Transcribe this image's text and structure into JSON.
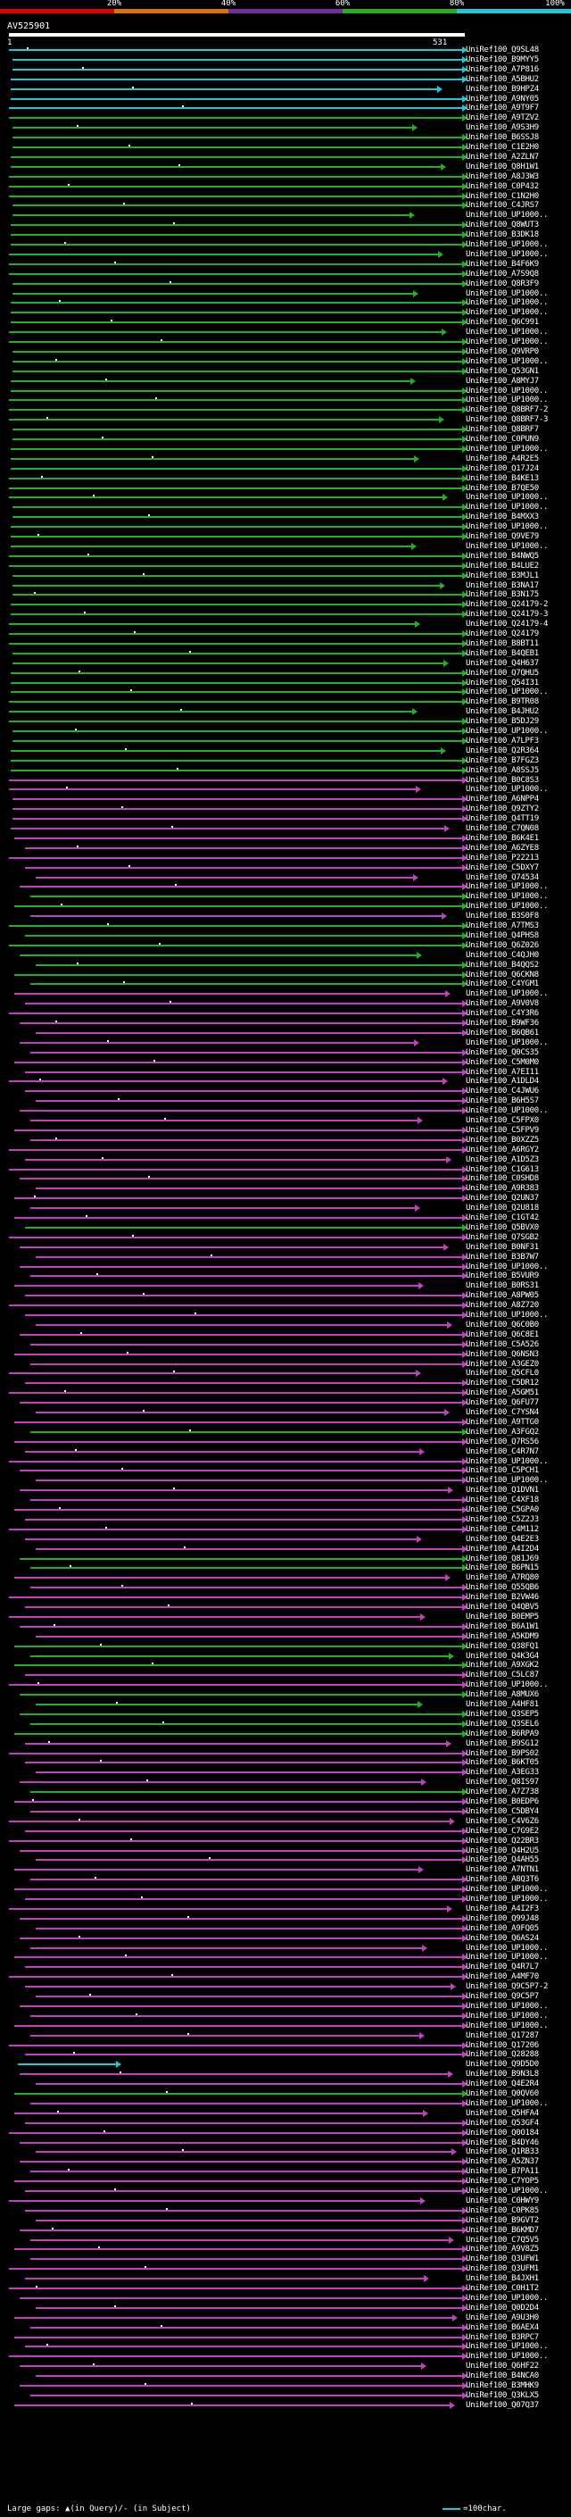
{
  "scale": {
    "labels": [
      "20%",
      "40%",
      "60%",
      "80%",
      "100%"
    ],
    "colors": [
      "#e00000",
      "#e07000",
      "#7a2aa0",
      "#22b022",
      "#1cc8d8"
    ]
  },
  "query": {
    "id": "AV525901",
    "start": "1",
    "end": "531"
  },
  "legend": {
    "gaps_text": "Large gaps: ▲(in Query)/- (in Subject)",
    "scale_text": "=100char."
  },
  "hits": [
    {
      "label": "UniRef100_Q9SL48",
      "color": "cyan"
    },
    {
      "label": "UniRef100_B9MYY5",
      "color": "cyan"
    },
    {
      "label": "UniRef100_A7P816",
      "color": "cyan"
    },
    {
      "label": "UniRef100_A5BHU2",
      "color": "cyan"
    },
    {
      "label": "UniRef100_B9HPZ4",
      "color": "cyan"
    },
    {
      "label": "UniRef100_A9NY05",
      "color": "cyan"
    },
    {
      "label": "UniRef100_A9T9F7",
      "color": "cyan"
    },
    {
      "label": "UniRef100_A9TZV2",
      "color": "green"
    },
    {
      "label": "UniRef100_A9S3H9",
      "color": "green"
    },
    {
      "label": "UniRef100_B6SSJ8",
      "color": "green"
    },
    {
      "label": "UniRef100_C1E2H0",
      "color": "green"
    },
    {
      "label": "UniRef100_A2ZLN7",
      "color": "green"
    },
    {
      "label": "UniRef100_Q8H1W1",
      "color": "green"
    },
    {
      "label": "UniRef100_A8J3W3",
      "color": "green"
    },
    {
      "label": "UniRef100_C0P432",
      "color": "green"
    },
    {
      "label": "UniRef100_C1N2H0",
      "color": "green"
    },
    {
      "label": "UniRef100_C4JRS7",
      "color": "green"
    },
    {
      "label": "UniRef100_UP1000..",
      "color": "green"
    },
    {
      "label": "UniRef100_Q8WUT3",
      "color": "green"
    },
    {
      "label": "UniRef100_B3DK18",
      "color": "green"
    },
    {
      "label": "UniRef100_UP1000..",
      "color": "green"
    },
    {
      "label": "UniRef100_UP1000..",
      "color": "green"
    },
    {
      "label": "UniRef100_B4F6K9",
      "color": "green"
    },
    {
      "label": "UniRef100_A7S9Q8",
      "color": "green"
    },
    {
      "label": "UniRef100_Q8R3F9",
      "color": "green"
    },
    {
      "label": "UniRef100_UP1000..",
      "color": "green"
    },
    {
      "label": "UniRef100_UP1000..",
      "color": "green"
    },
    {
      "label": "UniRef100_UP1000..",
      "color": "green"
    },
    {
      "label": "UniRef100_Q6C991",
      "color": "green"
    },
    {
      "label": "UniRef100_UP1000..",
      "color": "green"
    },
    {
      "label": "UniRef100_UP1000..",
      "color": "green"
    },
    {
      "label": "UniRef100_Q9VRP0",
      "color": "green"
    },
    {
      "label": "UniRef100_UP1000..",
      "color": "green"
    },
    {
      "label": "UniRef100_Q53GN1",
      "color": "green"
    },
    {
      "label": "UniRef100_A8MYJ7",
      "color": "green"
    },
    {
      "label": "UniRef100_UP1000..",
      "color": "green"
    },
    {
      "label": "UniRef100_UP1000..",
      "color": "green"
    },
    {
      "label": "UniRef100_Q8BRF7-2",
      "color": "green"
    },
    {
      "label": "UniRef100_Q8BRF7-3",
      "color": "green"
    },
    {
      "label": "UniRef100_Q8BRF7",
      "color": "green"
    },
    {
      "label": "UniRef100_C0PUN9",
      "color": "green"
    },
    {
      "label": "UniRef100_UP1000..",
      "color": "green"
    },
    {
      "label": "UniRef100_A4R2E5",
      "color": "green"
    },
    {
      "label": "UniRef100_Q17J24",
      "color": "green"
    },
    {
      "label": "UniRef100_B4KE13",
      "color": "green"
    },
    {
      "label": "UniRef100_B7QE50",
      "color": "green"
    },
    {
      "label": "UniRef100_UP1000..",
      "color": "green"
    },
    {
      "label": "UniRef100_UP1000..",
      "color": "green"
    },
    {
      "label": "UniRef100_B4MXX3",
      "color": "green"
    },
    {
      "label": "UniRef100_UP1000..",
      "color": "green"
    },
    {
      "label": "UniRef100_Q9VE79",
      "color": "green"
    },
    {
      "label": "UniRef100_UP1000..",
      "color": "green"
    },
    {
      "label": "UniRef100_B4NWQ5",
      "color": "green"
    },
    {
      "label": "UniRef100_B4LUE2",
      "color": "green"
    },
    {
      "label": "UniRef100_B3MJL1",
      "color": "green"
    },
    {
      "label": "UniRef100_B3NA17",
      "color": "green"
    },
    {
      "label": "UniRef100_B3N175",
      "color": "green"
    },
    {
      "label": "UniRef100_Q24179-2",
      "color": "green"
    },
    {
      "label": "UniRef100_Q24179-3",
      "color": "green"
    },
    {
      "label": "UniRef100_Q24179-4",
      "color": "green"
    },
    {
      "label": "UniRef100_Q24179",
      "color": "green"
    },
    {
      "label": "UniRef100_B8BT11",
      "color": "green"
    },
    {
      "label": "UniRef100_B4QEB1",
      "color": "green"
    },
    {
      "label": "UniRef100_Q4H637",
      "color": "green"
    },
    {
      "label": "UniRef100_Q7QHU5",
      "color": "green"
    },
    {
      "label": "UniRef100_Q54I31",
      "color": "green"
    },
    {
      "label": "UniRef100_UP1000..",
      "color": "green"
    },
    {
      "label": "UniRef100_B9TR08",
      "color": "green"
    },
    {
      "label": "UniRef100_B4JHU2",
      "color": "green"
    },
    {
      "label": "UniRef100_B5DJ29",
      "color": "green"
    },
    {
      "label": "UniRef100_UP1000..",
      "color": "green"
    },
    {
      "label": "UniRef100_A7LPF3",
      "color": "green"
    },
    {
      "label": "UniRef100_Q2R364",
      "color": "green"
    },
    {
      "label": "UniRef100_B7FGZ3",
      "color": "green"
    },
    {
      "label": "UniRef100_A8SSJ5",
      "color": "green"
    },
    {
      "label": "UniRef100_B0C8S3",
      "color": "magenta"
    },
    {
      "label": "UniRef100_UP1000..",
      "color": "magenta"
    },
    {
      "label": "UniRef100_A6NPP4",
      "color": "magenta"
    },
    {
      "label": "UniRef100_Q9ZTY2",
      "color": "magenta"
    },
    {
      "label": "UniRef100_Q4TT19",
      "color": "magenta"
    },
    {
      "label": "UniRef100_C7QN08",
      "color": "magenta"
    },
    {
      "label": "UniRef100_B6K4E1",
      "color": "magenta"
    },
    {
      "label": "UniRef100_A6ZYE8",
      "color": "magenta"
    },
    {
      "label": "UniRef100_P22213",
      "color": "magenta"
    },
    {
      "label": "UniRef100_C5DXY7",
      "color": "magenta"
    },
    {
      "label": "UniRef100_Q74534",
      "color": "magenta"
    },
    {
      "label": "UniRef100_UP1000..",
      "color": "magenta"
    },
    {
      "label": "UniRef100_UP1000..",
      "color": "green"
    },
    {
      "label": "UniRef100_UP1000..",
      "color": "green"
    },
    {
      "label": "UniRef100_B3S0F8",
      "color": "magenta"
    },
    {
      "label": "UniRef100_A7TMS3",
      "color": "green"
    },
    {
      "label": "UniRef100_Q4PHS8",
      "color": "green"
    },
    {
      "label": "UniRef100_Q6Z026",
      "color": "green"
    },
    {
      "label": "UniRef100_C4QJH0",
      "color": "green"
    },
    {
      "label": "UniRef100_B4QQS2",
      "color": "green"
    },
    {
      "label": "UniRef100_Q6CKN8",
      "color": "green"
    },
    {
      "label": "UniRef100_C4YGM1",
      "color": "green"
    },
    {
      "label": "UniRef100_UP1000..",
      "color": "magenta"
    },
    {
      "label": "UniRef100_A9V0V8",
      "color": "magenta"
    },
    {
      "label": "UniRef100_C4Y3R6",
      "color": "magenta"
    },
    {
      "label": "UniRef100_B9WF36",
      "color": "magenta"
    },
    {
      "label": "UniRef100_B6QB61",
      "color": "magenta"
    },
    {
      "label": "UniRef100_UP1000..",
      "color": "magenta"
    },
    {
      "label": "UniRef100_Q0CS35",
      "color": "magenta"
    },
    {
      "label": "UniRef100_C5M0M0",
      "color": "magenta"
    },
    {
      "label": "UniRef100_A7EI11",
      "color": "magenta"
    },
    {
      "label": "UniRef100_A1DLD4",
      "color": "magenta"
    },
    {
      "label": "UniRef100_C4JWU6",
      "color": "magenta"
    },
    {
      "label": "UniRef100_B6H5S7",
      "color": "magenta"
    },
    {
      "label": "UniRef100_UP1000..",
      "color": "magenta"
    },
    {
      "label": "UniRef100_C5FPX0",
      "color": "magenta"
    },
    {
      "label": "UniRef100_C5FPV9",
      "color": "magenta"
    },
    {
      "label": "UniRef100_B0XZZ5",
      "color": "magenta"
    },
    {
      "label": "UniRef100_A6RGY2",
      "color": "magenta"
    },
    {
      "label": "UniRef100_A1D5Z3",
      "color": "magenta"
    },
    {
      "label": "UniRef100_C1G613",
      "color": "magenta"
    },
    {
      "label": "UniRef100_C0SHD8",
      "color": "magenta"
    },
    {
      "label": "UniRef100_A9R383",
      "color": "magenta"
    },
    {
      "label": "UniRef100_Q2UN37",
      "color": "magenta"
    },
    {
      "label": "UniRef100_Q2U818",
      "color": "magenta"
    },
    {
      "label": "UniRef100_C1GT42",
      "color": "magenta"
    },
    {
      "label": "UniRef100_Q5BVX0",
      "color": "green"
    },
    {
      "label": "UniRef100_Q7SGB2",
      "color": "magenta"
    },
    {
      "label": "UniRef100_B0NF31",
      "color": "magenta"
    },
    {
      "label": "UniRef100_B3B7W7",
      "color": "magenta"
    },
    {
      "label": "UniRef100_UP1000..",
      "color": "magenta"
    },
    {
      "label": "UniRef100_B5VUR9",
      "color": "magenta"
    },
    {
      "label": "UniRef100_B0RS31",
      "color": "magenta"
    },
    {
      "label": "UniRef100_A8PW05",
      "color": "magenta"
    },
    {
      "label": "UniRef100_A8Z720",
      "color": "magenta"
    },
    {
      "label": "UniRef100_UP1000..",
      "color": "magenta"
    },
    {
      "label": "UniRef100_Q6C0B0",
      "color": "magenta"
    },
    {
      "label": "UniRef100_Q6C8E1",
      "color": "magenta"
    },
    {
      "label": "UniRef100_C5A526",
      "color": "magenta"
    },
    {
      "label": "UniRef100_Q6NSN3",
      "color": "magenta"
    },
    {
      "label": "UniRef100_A3GEZ0",
      "color": "magenta"
    },
    {
      "label": "UniRef100_Q5CFL0",
      "color": "magenta"
    },
    {
      "label": "UniRef100_C5DR12",
      "color": "magenta"
    },
    {
      "label": "UniRef100_A5GM51",
      "color": "magenta"
    },
    {
      "label": "UniRef100_Q6FU77",
      "color": "magenta"
    },
    {
      "label": "UniRef100_C7YSN4",
      "color": "magenta"
    },
    {
      "label": "UniRef100_A9TTG0",
      "color": "magenta"
    },
    {
      "label": "UniRef100_A3FGQ2",
      "color": "green"
    },
    {
      "label": "UniRef100_Q7RS56",
      "color": "magenta"
    },
    {
      "label": "UniRef100_C4R7N7",
      "color": "magenta"
    },
    {
      "label": "UniRef100_UP1000..",
      "color": "magenta"
    },
    {
      "label": "UniRef100_C5PCH1",
      "color": "magenta"
    },
    {
      "label": "UniRef100_UP1000..",
      "color": "magenta"
    },
    {
      "label": "UniRef100_Q1DVN1",
      "color": "magenta"
    },
    {
      "label": "UniRef100_C4XF18",
      "color": "magenta"
    },
    {
      "label": "UniRef100_C5GPA0",
      "color": "magenta"
    },
    {
      "label": "UniRef100_C5Z2J3",
      "color": "magenta"
    },
    {
      "label": "UniRef100_C4M112",
      "color": "magenta"
    },
    {
      "label": "UniRef100_Q4E2E3",
      "color": "magenta"
    },
    {
      "label": "UniRef100_A4I2D4",
      "color": "magenta"
    },
    {
      "label": "UniRef100_Q81J69",
      "color": "green"
    },
    {
      "label": "UniRef100_B6PN15",
      "color": "green"
    },
    {
      "label": "UniRef100_A7RQ80",
      "color": "magenta"
    },
    {
      "label": "UniRef100_Q55QB6",
      "color": "magenta"
    },
    {
      "label": "UniRef100_B2VW46",
      "color": "magenta"
    },
    {
      "label": "UniRef100_Q4QBV5",
      "color": "magenta"
    },
    {
      "label": "UniRef100_B0EMP5",
      "color": "magenta"
    },
    {
      "label": "UniRef100_B6A1W1",
      "color": "magenta"
    },
    {
      "label": "UniRef100_A5KDM9",
      "color": "magenta"
    },
    {
      "label": "UniRef100_Q38FQ1",
      "color": "green"
    },
    {
      "label": "UniRef100_Q4K3G4",
      "color": "green"
    },
    {
      "label": "UniRef100_A9XGK2",
      "color": "green"
    },
    {
      "label": "UniRef100_C5LC87",
      "color": "magenta"
    },
    {
      "label": "UniRef100_UP1000..",
      "color": "magenta"
    },
    {
      "label": "UniRef100_A8MUX6",
      "color": "green"
    },
    {
      "label": "UniRef100_A4HF81",
      "color": "green"
    },
    {
      "label": "UniRef100_Q3SEP5",
      "color": "green"
    },
    {
      "label": "UniRef100_Q3SEL6",
      "color": "green"
    },
    {
      "label": "UniRef100_B6RPA9",
      "color": "green"
    },
    {
      "label": "UniRef100_B9SG12",
      "color": "magenta"
    },
    {
      "label": "UniRef100_B9PS02",
      "color": "magenta"
    },
    {
      "label": "UniRef100_B6KT05",
      "color": "magenta"
    },
    {
      "label": "UniRef100_A3EG33",
      "color": "magenta"
    },
    {
      "label": "UniRef100_Q8IS97",
      "color": "magenta"
    },
    {
      "label": "UniRef100_A7Z738",
      "color": "green"
    },
    {
      "label": "UniRef100_B0EDP6",
      "color": "magenta"
    },
    {
      "label": "UniRef100_C5DBY4",
      "color": "magenta"
    },
    {
      "label": "UniRef100_C4V6Z6",
      "color": "magenta"
    },
    {
      "label": "UniRef100_C7G9E2",
      "color": "magenta"
    },
    {
      "label": "UniRef100_Q22BR3",
      "color": "magenta"
    },
    {
      "label": "UniRef100_Q4H2U5",
      "color": "magenta"
    },
    {
      "label": "UniRef100_Q4AH55",
      "color": "magenta"
    },
    {
      "label": "UniRef100_A7NTN1",
      "color": "magenta"
    },
    {
      "label": "UniRef100_A8Q3T6",
      "color": "magenta"
    },
    {
      "label": "UniRef100_UP1000..",
      "color": "magenta"
    },
    {
      "label": "UniRef100_UP1000..",
      "color": "magenta"
    },
    {
      "label": "UniRef100_A4I2F3",
      "color": "magenta"
    },
    {
      "label": "UniRef100_Q99J48",
      "color": "magenta"
    },
    {
      "label": "UniRef100_A9FQ05",
      "color": "magenta"
    },
    {
      "label": "UniRef100_Q6AS24",
      "color": "magenta"
    },
    {
      "label": "UniRef100_UP1000..",
      "color": "magenta"
    },
    {
      "label": "UniRef100_UP1000..",
      "color": "magenta"
    },
    {
      "label": "UniRef100_Q4R7L7",
      "color": "magenta"
    },
    {
      "label": "UniRef100_A4MF70",
      "color": "magenta"
    },
    {
      "label": "UniRef100_Q9C5P7-2",
      "color": "magenta"
    },
    {
      "label": "UniRef100_Q9C5P7",
      "color": "magenta"
    },
    {
      "label": "UniRef100_UP1000..",
      "color": "magenta"
    },
    {
      "label": "UniRef100_UP1000..",
      "color": "magenta"
    },
    {
      "label": "UniRef100_UP1000..",
      "color": "magenta"
    },
    {
      "label": "UniRef100_Q17287",
      "color": "magenta"
    },
    {
      "label": "UniRef100_Q17206",
      "color": "magenta"
    },
    {
      "label": "UniRef100_Q28288",
      "color": "magenta"
    },
    {
      "label": "UniRef100_Q9D5D0",
      "color": "cyan"
    },
    {
      "label": "UniRef100_B9N3L8",
      "color": "magenta"
    },
    {
      "label": "UniRef100_Q4E2R4",
      "color": "magenta"
    },
    {
      "label": "UniRef100_Q0QV60",
      "color": "green"
    },
    {
      "label": "UniRef100_UP1000..",
      "color": "magenta"
    },
    {
      "label": "UniRef100_Q5HFA4",
      "color": "magenta"
    },
    {
      "label": "UniRef100_Q53GF4",
      "color": "magenta"
    },
    {
      "label": "UniRef100_Q0O184",
      "color": "magenta"
    },
    {
      "label": "UniRef100_B4DY46",
      "color": "magenta"
    },
    {
      "label": "UniRef100_Q1RB33",
      "color": "magenta"
    },
    {
      "label": "UniRef100_A5ZN37",
      "color": "magenta"
    },
    {
      "label": "UniRef100_B7PA11",
      "color": "magenta"
    },
    {
      "label": "UniRef100_C7YOP5",
      "color": "magenta"
    },
    {
      "label": "UniRef100_UP1000..",
      "color": "magenta"
    },
    {
      "label": "UniRef100_C0HWY9",
      "color": "magenta"
    },
    {
      "label": "UniRef100_C0PK85",
      "color": "magenta"
    },
    {
      "label": "UniRef100_B9GVT2",
      "color": "magenta"
    },
    {
      "label": "UniRef100_B6KMD7",
      "color": "magenta"
    },
    {
      "label": "UniRef100_C7Q5V5",
      "color": "magenta"
    },
    {
      "label": "UniRef100_A9V8Z5",
      "color": "magenta"
    },
    {
      "label": "UniRef100_Q3UFW1",
      "color": "magenta"
    },
    {
      "label": "UniRef100_Q3UFM1",
      "color": "magenta"
    },
    {
      "label": "UniRef100_B4JXH1",
      "color": "magenta"
    },
    {
      "label": "UniRef100_C0H1T2",
      "color": "magenta"
    },
    {
      "label": "UniRef100_UP1000..",
      "color": "magenta"
    },
    {
      "label": "UniRef100_Q0D2D4",
      "color": "magenta"
    },
    {
      "label": "UniRef100_A9U3H0",
      "color": "magenta"
    },
    {
      "label": "UniRef100_B6AEX4",
      "color": "magenta"
    },
    {
      "label": "UniRef100_B3RPC7",
      "color": "magenta"
    },
    {
      "label": "UniRef100_UP1000..",
      "color": "magenta"
    },
    {
      "label": "UniRef100_UP1000..",
      "color": "magenta"
    },
    {
      "label": "UniRef100_Q6HF22",
      "color": "magenta"
    },
    {
      "label": "UniRef100_B4NCA0",
      "color": "magenta"
    },
    {
      "label": "UniRef100_B3MHK9",
      "color": "magenta"
    },
    {
      "label": "UniRef100_Q3KLX5",
      "color": "magenta"
    },
    {
      "label": "UniRef100_Q07Q37",
      "color": "magenta"
    }
  ]
}
